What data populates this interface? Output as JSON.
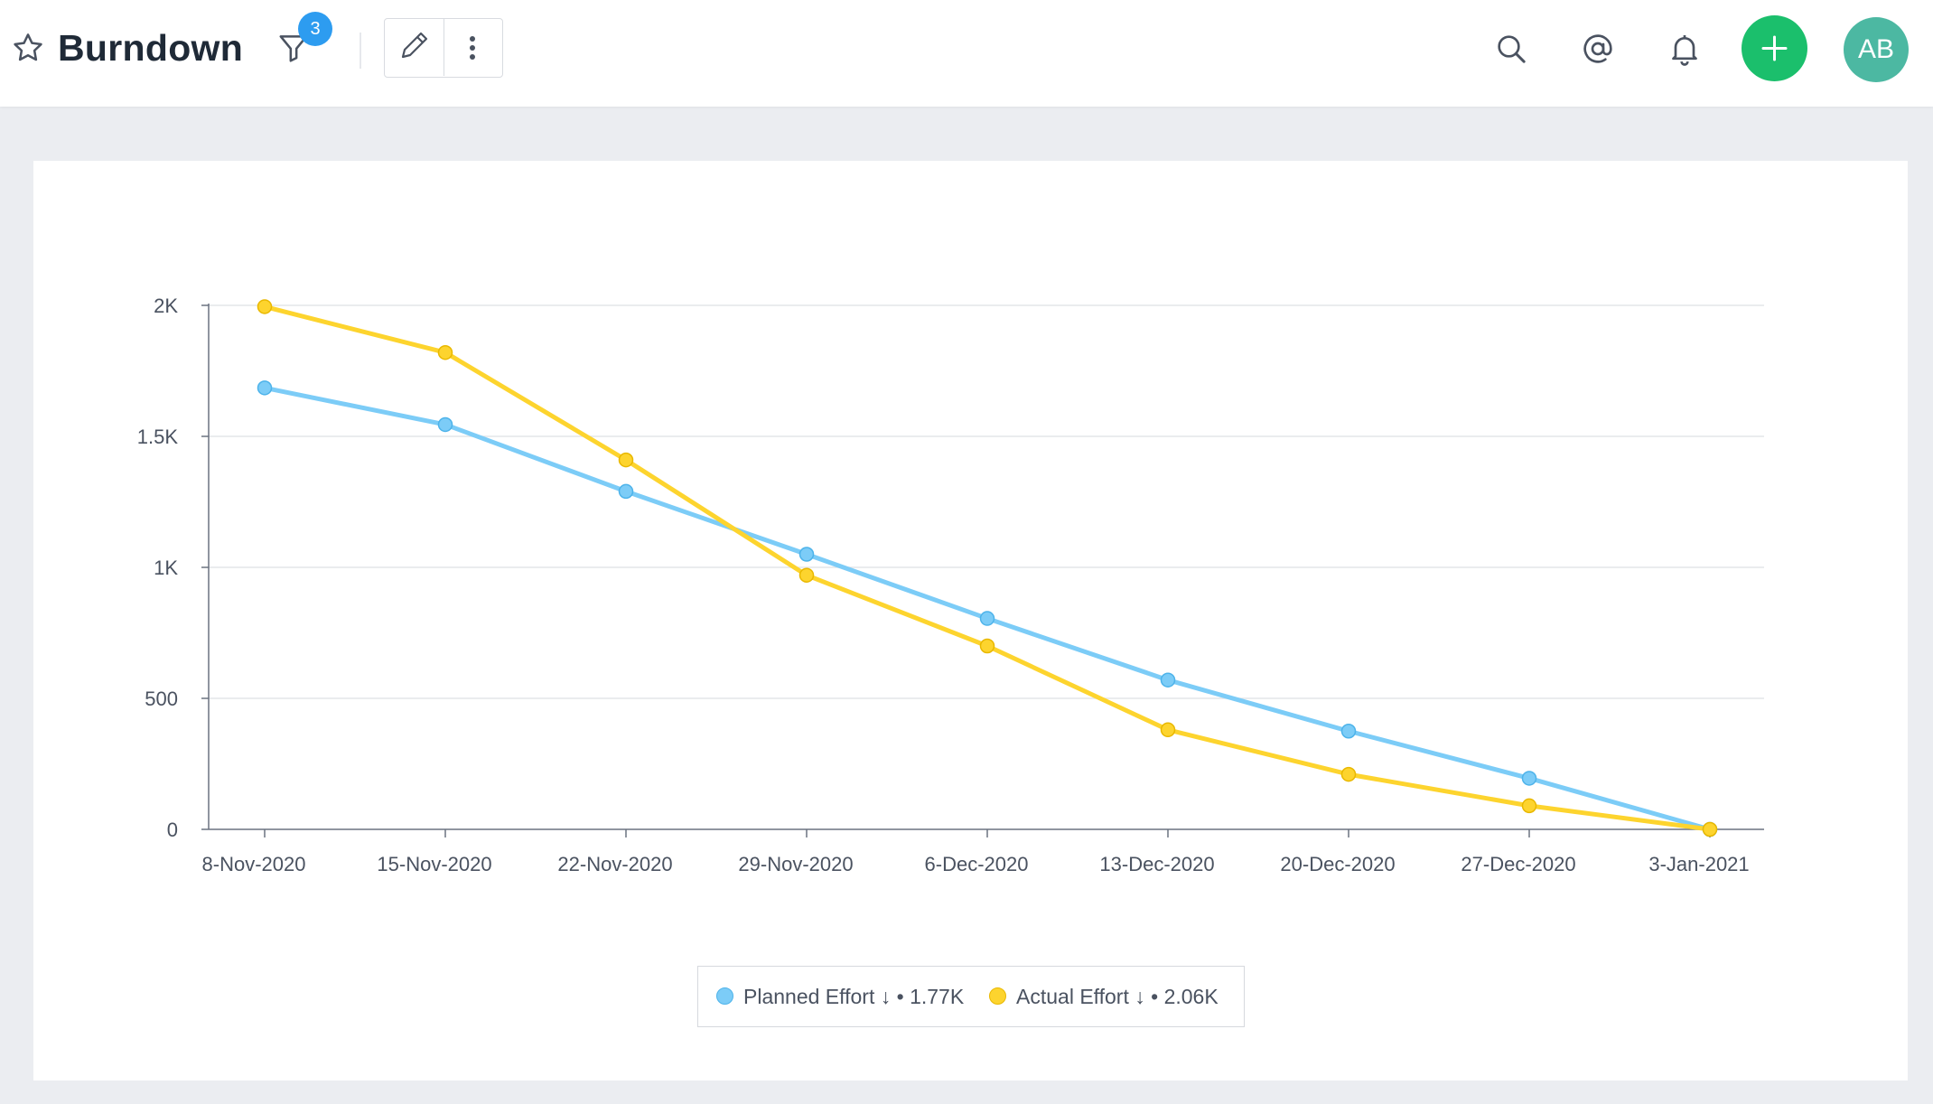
{
  "header": {
    "title": "Burndown",
    "filter_count": "3",
    "avatar_initials": "AB",
    "icons": [
      "star-icon",
      "filter-icon",
      "pencil-icon",
      "more-vertical-icon",
      "search-icon",
      "at-icon",
      "bell-icon",
      "plus-icon"
    ]
  },
  "colors": {
    "planned": "#7cccf7",
    "actual": "#fdd42e",
    "accent_green": "#1bbf6c",
    "badge_blue": "#2d9cf0",
    "avatar_teal": "#4cb8a2"
  },
  "legend": {
    "planned_label": "Planned Effort ↓ • 1.77K",
    "actual_label": "Actual Effort ↓ • 2.06K"
  },
  "chart_data": {
    "type": "line",
    "title": "",
    "xlabel": "",
    "ylabel": "",
    "categories": [
      "8-Nov-2020",
      "15-Nov-2020",
      "22-Nov-2020",
      "29-Nov-2020",
      "6-Dec-2020",
      "13-Dec-2020",
      "20-Dec-2020",
      "27-Dec-2020",
      "3-Jan-2021"
    ],
    "ylim": [
      0,
      2000
    ],
    "yticks": [
      0,
      500,
      1000,
      1500,
      2000
    ],
    "ytick_labels": [
      "0",
      "500",
      "1K",
      "1.5K",
      "2K"
    ],
    "grid": true,
    "legend_position": "bottom",
    "series": [
      {
        "name": "Planned Effort",
        "color": "#7cccf7",
        "values": [
          1685,
          1545,
          1290,
          1050,
          805,
          570,
          375,
          195,
          0
        ]
      },
      {
        "name": "Actual Effort",
        "color": "#fdd42e",
        "values": [
          1995,
          1820,
          1410,
          970,
          700,
          380,
          210,
          90,
          0
        ]
      }
    ]
  }
}
